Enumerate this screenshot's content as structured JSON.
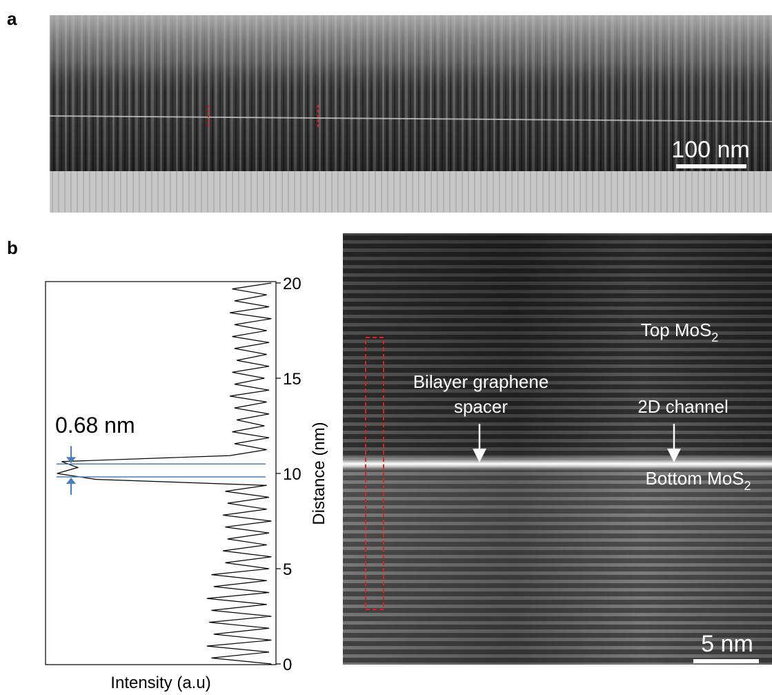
{
  "panels": {
    "a": {
      "label": "a",
      "scale_bar": "100 nm"
    },
    "b": {
      "label": "b",
      "scale_bar": "5 nm",
      "top_layer": {
        "text": "Top MoS",
        "subscript": "2"
      },
      "bottom_layer": {
        "text": "Bottom MoS",
        "subscript": "2"
      },
      "spacer": [
        "Bilayer graphene",
        "spacer"
      ],
      "channel": "2D channel"
    }
  },
  "chart_data": {
    "type": "line",
    "x_label": "Intensity (a.u)",
    "y_label": "Distance (nm)",
    "ylim": [
      0,
      20
    ],
    "yticks": [
      0,
      5,
      10,
      15,
      20
    ],
    "xlim": [
      0,
      1
    ],
    "color": "#000000",
    "x": [
      0,
      0.3125,
      0.625,
      0.9375,
      1.25,
      1.5625,
      1.875,
      2.1875,
      2.5,
      2.8125,
      3.125,
      3.4375,
      3.75,
      4.0625,
      4.375,
      4.6875,
      5,
      5.3125,
      5.625,
      5.9375,
      6.25,
      6.5625,
      6.875,
      7.1875,
      7.5,
      7.8125,
      8.125,
      8.4375,
      8.75,
      9.0625,
      9.375,
      9.6875,
      10,
      10.3125,
      10.625,
      10.9375,
      11.25,
      11.5625,
      11.875,
      12.1875,
      12.5,
      12.8125,
      13.125,
      13.4375,
      13.75,
      14.0625,
      14.375,
      14.6875,
      15,
      15.3125,
      15.625,
      15.9375,
      16.25,
      16.5625,
      16.875,
      17.1875,
      17.5,
      17.8125,
      18.125,
      18.4375,
      18.75,
      19.0625,
      19.375,
      19.6875,
      20
    ],
    "values": [
      0.98,
      0.72,
      0.97,
      0.7,
      0.98,
      0.73,
      0.97,
      0.71,
      0.98,
      0.72,
      0.96,
      0.7,
      0.97,
      0.73,
      0.96,
      0.72,
      0.97,
      0.78,
      0.98,
      0.77,
      0.96,
      0.79,
      0.97,
      0.78,
      0.98,
      0.77,
      0.96,
      0.79,
      0.97,
      0.78,
      0.96,
      0.22,
      0.05,
      0.14,
      0.07,
      0.8,
      0.96,
      0.82,
      0.97,
      0.81,
      0.95,
      0.83,
      0.97,
      0.82,
      0.96,
      0.8,
      0.97,
      0.82,
      0.95,
      0.81,
      0.97,
      0.83,
      0.96,
      0.82,
      0.97,
      0.81,
      0.96,
      0.82,
      0.98,
      0.8,
      0.97,
      0.82,
      0.96,
      0.81,
      0.98
    ],
    "measurement": {
      "label": "0.68 nm",
      "lower": 9.82,
      "upper": 10.5,
      "color": "#4a7ebb"
    }
  }
}
